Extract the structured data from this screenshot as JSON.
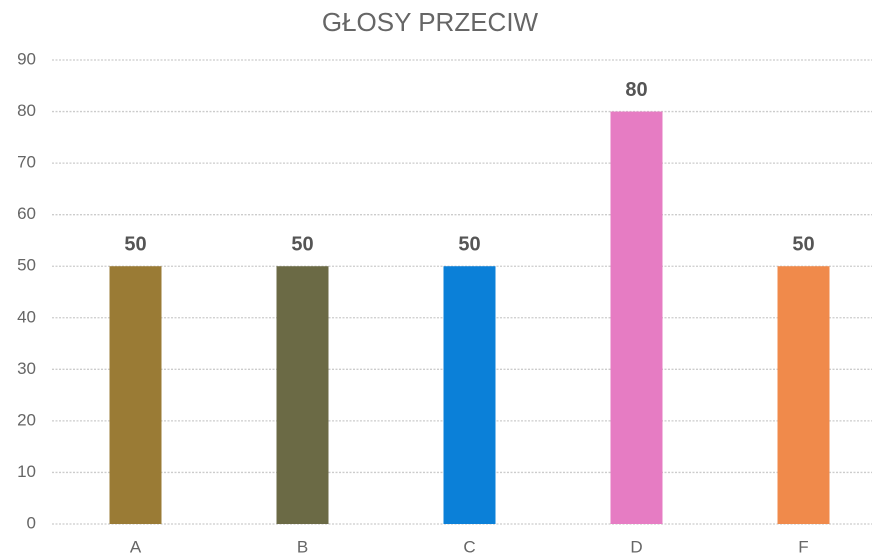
{
  "chart_data": {
    "type": "bar",
    "title": "GŁOSY PRZECIW",
    "categories": [
      "A",
      "B",
      "C",
      "D",
      "F"
    ],
    "values": [
      50,
      50,
      50,
      80,
      50
    ],
    "colors": [
      "#9a7b35",
      "#6b6a45",
      "#0b80d8",
      "#e67cc3",
      "#f08a4b"
    ],
    "ylim": [
      0,
      90
    ],
    "yticks": [
      0,
      10,
      20,
      30,
      40,
      50,
      60,
      70,
      80,
      90
    ],
    "grid": true
  }
}
